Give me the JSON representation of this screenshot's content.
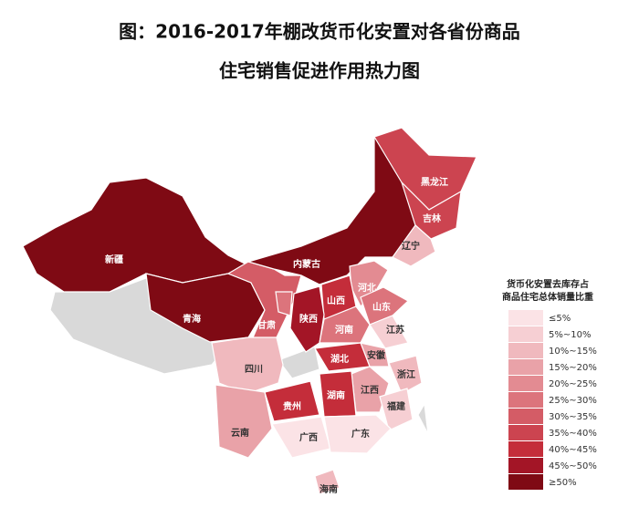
{
  "title": [
    "图：2016-2017年棚改货币化安置对各省份商品",
    "住宅销售促进作用热力图"
  ],
  "provinces": [
    {
      "name": "新疆",
      "color": "#7f0a14"
    },
    {
      "name": "青海",
      "color": "#7f0a14"
    },
    {
      "name": "甘肃",
      "color": "#d45c66"
    },
    {
      "name": "内蒙古",
      "color": "#7f0a14"
    },
    {
      "name": "黑龙江",
      "color": "#cc4450"
    },
    {
      "name": "吉林",
      "color": "#cc4450"
    },
    {
      "name": "辽宁",
      "color": "#f0b9be"
    },
    {
      "name": "河北",
      "color": "#e38b92"
    },
    {
      "name": "山西",
      "color": "#c42d3a"
    },
    {
      "name": "陕西",
      "color": "#a31526"
    },
    {
      "name": "河南",
      "color": "#dc747c"
    },
    {
      "name": "山东",
      "color": "#dc747c"
    },
    {
      "name": "江苏",
      "color": "#f6cfd3"
    },
    {
      "name": "安徽",
      "color": "#e9a2a8"
    },
    {
      "name": "湖北",
      "color": "#c42d3a"
    },
    {
      "name": "四川",
      "color": "#f0b9be"
    },
    {
      "name": "浙江",
      "color": "#f0b9be"
    },
    {
      "name": "江西",
      "color": "#e9a2a8"
    },
    {
      "name": "湖南",
      "color": "#c42d3a"
    },
    {
      "name": "福建",
      "color": "#f6cfd3"
    },
    {
      "name": "贵州",
      "color": "#c42d3a"
    },
    {
      "name": "云南",
      "color": "#e9a2a8"
    },
    {
      "name": "广西",
      "color": "#fbe3e6"
    },
    {
      "name": "广东",
      "color": "#fbe3e6"
    },
    {
      "name": "海南",
      "color": "#f0b9be"
    }
  ],
  "legend": {
    "title": [
      "货币化安置去库存占",
      "商品住宅总体销量比重"
    ],
    "items": [
      {
        "label": "≤5%",
        "color": "#fbe3e6"
      },
      {
        "label": "5%~10%",
        "color": "#f6cfd3"
      },
      {
        "label": "10%~15%",
        "color": "#f0b9be"
      },
      {
        "label": "15%~20%",
        "color": "#e9a2a8"
      },
      {
        "label": "20%~25%",
        "color": "#e38b92"
      },
      {
        "label": "25%~30%",
        "color": "#dc747c"
      },
      {
        "label": "30%~35%",
        "color": "#d45c66"
      },
      {
        "label": "35%~40%",
        "color": "#cc4450"
      },
      {
        "label": "40%~45%",
        "color": "#c42d3a"
      },
      {
        "label": "45%~50%",
        "color": "#a31526"
      },
      {
        "label": "≥50%",
        "color": "#7f0a14"
      }
    ]
  }
}
